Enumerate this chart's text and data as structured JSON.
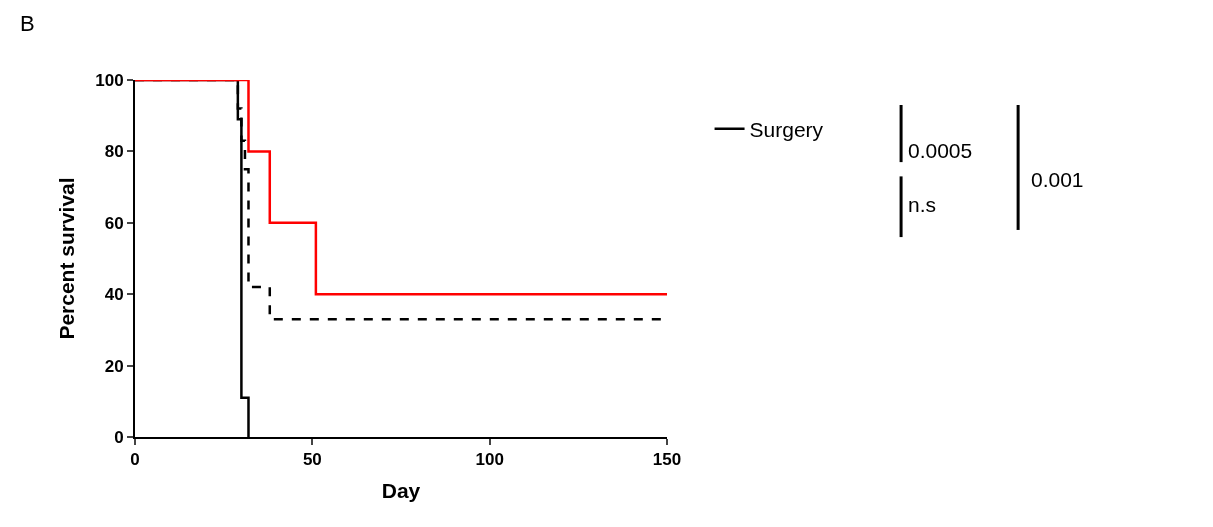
{
  "chart_data": {
    "type": "step",
    "xlabel": "Day",
    "ylabel": "Percent survival",
    "xlim": [
      0,
      150
    ],
    "xticks": [
      0,
      50,
      100,
      150
    ],
    "ylim": [
      0,
      100
    ],
    "yticks": [
      0,
      20,
      40,
      60,
      80,
      100
    ],
    "series": [
      {
        "name": "Surgery",
        "color": "#000000",
        "line_style": "solid",
        "x": [
          0,
          29,
          30,
          30.5,
          32
        ],
        "values": [
          100,
          89,
          11,
          11,
          0
        ]
      },
      {
        "color": "#000000",
        "line_style": "dashed",
        "x": [
          0,
          29,
          30,
          31,
          32,
          38,
          150
        ],
        "values": [
          100,
          92,
          83,
          75,
          42,
          33,
          33
        ]
      },
      {
        "color": "#ff0000",
        "line_style": "solid",
        "x": [
          0,
          32,
          38,
          51,
          150
        ],
        "values": [
          100,
          80,
          60,
          40,
          40
        ]
      }
    ],
    "annotations": [
      "B",
      "0.0005",
      "n.s",
      "0.001"
    ],
    "legend": "right"
  }
}
